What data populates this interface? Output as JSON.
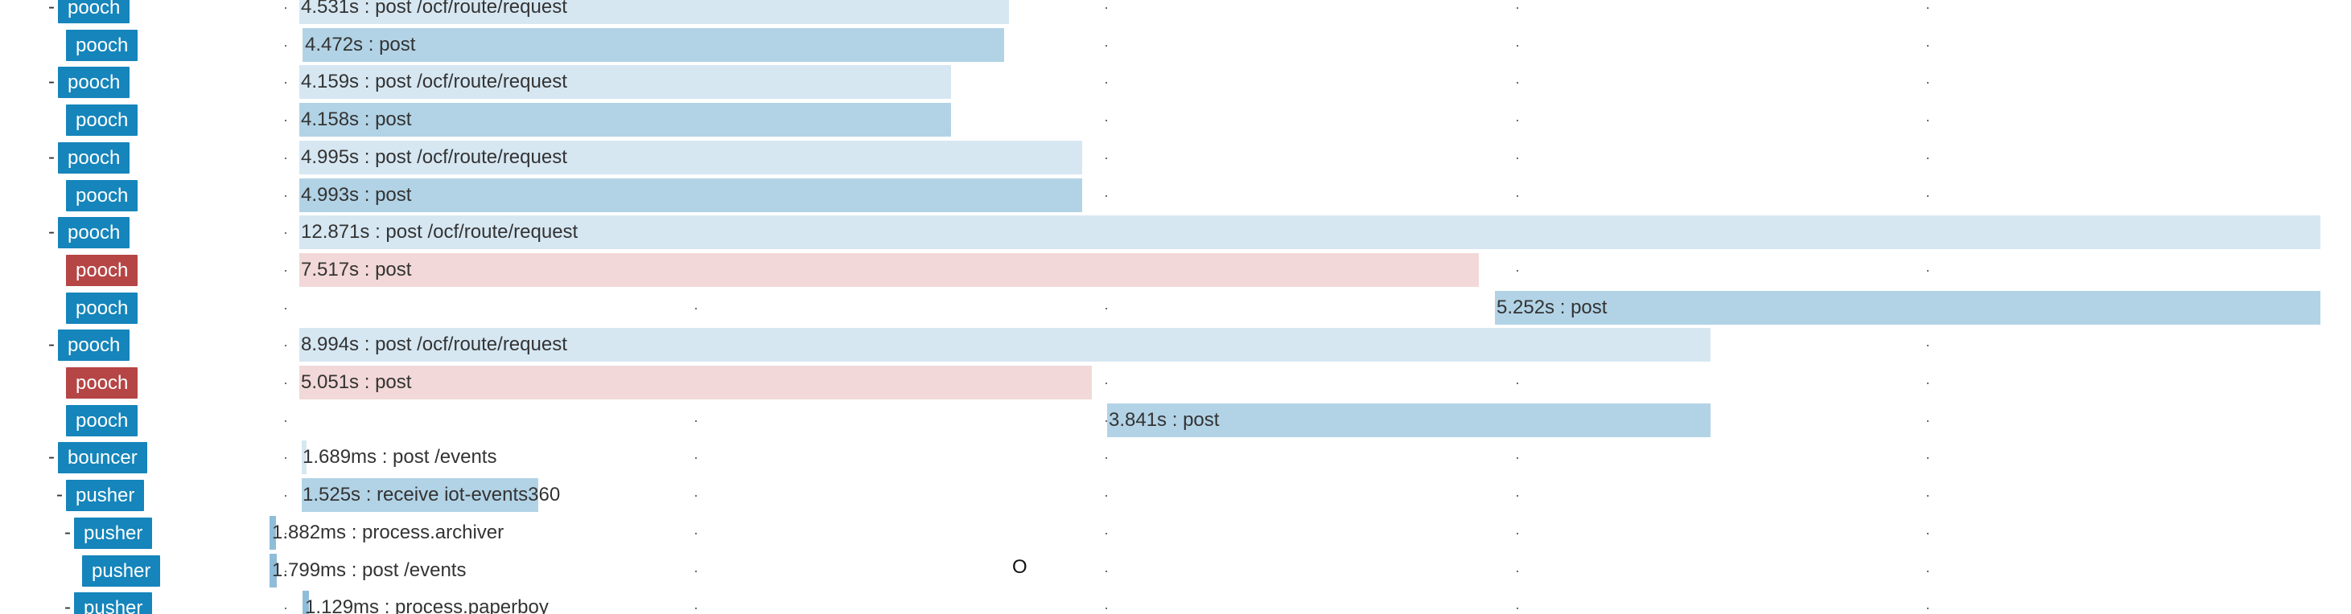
{
  "colors": {
    "service_blue": "#1585bb",
    "service_red": "#b64545",
    "bar_light": "#d6e7f2",
    "bar_blue": "#b2d3e6",
    "bar_red": "#f2d8d8",
    "bar_thin": "#8fbdd9"
  },
  "cursor_glyph": "O",
  "rows": [
    {
      "toggle": "-",
      "service": "pooch",
      "status": "ok",
      "label": "4.531s : post /ocf/route/request",
      "bar": "light"
    },
    {
      "toggle": "",
      "service": "pooch",
      "status": "ok",
      "label": "4.472s : post",
      "bar": "blue"
    },
    {
      "toggle": "-",
      "service": "pooch",
      "status": "ok",
      "label": "4.159s : post /ocf/route/request",
      "bar": "light"
    },
    {
      "toggle": "",
      "service": "pooch",
      "status": "ok",
      "label": "4.158s : post",
      "bar": "blue"
    },
    {
      "toggle": "-",
      "service": "pooch",
      "status": "ok",
      "label": "4.995s : post /ocf/route/request",
      "bar": "light"
    },
    {
      "toggle": "",
      "service": "pooch",
      "status": "ok",
      "label": "4.993s : post",
      "bar": "blue"
    },
    {
      "toggle": "-",
      "service": "pooch",
      "status": "ok",
      "label": "12.871s : post /ocf/route/request",
      "bar": "light"
    },
    {
      "toggle": "",
      "service": "pooch",
      "status": "error",
      "label": "7.517s : post",
      "bar": "red"
    },
    {
      "toggle": "",
      "service": "pooch",
      "status": "ok",
      "label": "5.252s : post",
      "bar": "blue"
    },
    {
      "toggle": "-",
      "service": "pooch",
      "status": "ok",
      "label": "8.994s : post /ocf/route/request",
      "bar": "light"
    },
    {
      "toggle": "",
      "service": "pooch",
      "status": "error",
      "label": "5.051s : post",
      "bar": "red"
    },
    {
      "toggle": "",
      "service": "pooch",
      "status": "ok",
      "label": "3.841s : post",
      "bar": "blue"
    },
    {
      "toggle": "-",
      "service": "bouncer",
      "status": "ok",
      "label": "1.689ms : post /events",
      "bar": "light"
    },
    {
      "toggle": "-",
      "service": "pusher",
      "status": "ok",
      "label": "1.525s : receive iot-events360",
      "bar": "blue"
    },
    {
      "toggle": "-",
      "service": "pusher",
      "status": "ok",
      "label": "1.882ms : process.archiver",
      "bar": "thin"
    },
    {
      "toggle": "",
      "service": "pusher",
      "status": "ok",
      "label": "1.799ms : post /events",
      "bar": "thin"
    },
    {
      "toggle": "-",
      "service": "pusher",
      "status": "ok",
      "label": "1.129ms : process.paperboy",
      "bar": "thin"
    }
  ]
}
